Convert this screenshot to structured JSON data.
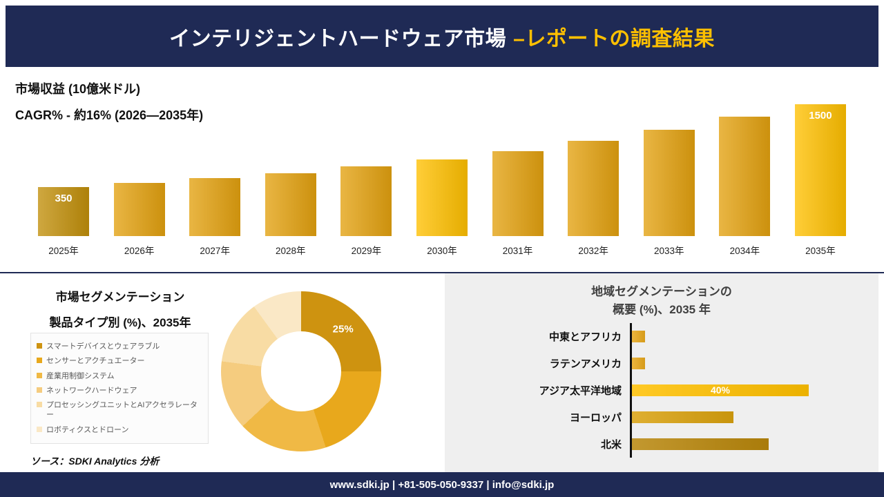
{
  "header": {
    "title_main": "インテリジェントハードウェア市場",
    "title_accent": "–レポートの調査結果"
  },
  "revenue": {
    "metric_label": "市場収益 (10億米ドル)",
    "cagr_label": "CAGR% - 約16% (2026―2035年)"
  },
  "segmentation": {
    "title_line1": "市場セグメンテーション",
    "title_line2": "製品タイプ別 (%)、2035年",
    "source": "ソース：SDKI Analytics 分析"
  },
  "region": {
    "title_line1": "地域セグメンテーションの",
    "title_line2": "概要 (%)、2035 年"
  },
  "footer": {
    "text": "www.sdki.jp | +81-505-050-9337 | info@sdki.jp"
  },
  "colors": {
    "navy": "#1f2a55",
    "accent_yellow": "#ffc000",
    "gold": "#e3a10f",
    "dark_gold": "#c18f0a"
  },
  "chart_data": [
    {
      "type": "bar",
      "title": "市場収益 (10億米ドル)",
      "subtitle": "CAGR% - 約16% (2026―2035年)",
      "categories": [
        "2025年",
        "2026年",
        "2027年",
        "2028年",
        "2029年",
        "2030年",
        "2031年",
        "2032年",
        "2033年",
        "2034年",
        "2035年"
      ],
      "values": [
        350,
        406,
        470,
        545,
        633,
        734,
        851,
        988,
        1146,
        1329,
        1500
      ],
      "labeled_values": [
        {
          "index": 0,
          "label": "350"
        },
        {
          "index": 10,
          "label": "1500"
        }
      ],
      "bar_colors": [
        "#c18f0a",
        "#e3a10f",
        "#e3a10f",
        "#e3a10f",
        "#e3a10f",
        "#ffc000",
        "#e3a10f",
        "#e3a10f",
        "#e3a10f",
        "#e3a10f",
        "#ffc000"
      ],
      "ylim": [
        0,
        1600
      ],
      "xlabel": "",
      "ylabel": "市場収益 (10億米ドル)"
    },
    {
      "type": "pie",
      "donut": true,
      "title": "市場セグメンテーション 製品タイプ別 (%)、2035年",
      "labels": [
        "スマートデバイスとウェアラブル",
        "センサーとアクチュエーター",
        "産業用制御システム",
        "ネットワークハードウェア",
        "プロセッシングユニットとAIアクセラレーター",
        "ロボティクスとドローン"
      ],
      "values": [
        25,
        20,
        18,
        14,
        13,
        10
      ],
      "colors": [
        "#ce9310",
        "#e8a81c",
        "#f0b945",
        "#f5cc7f",
        "#f8dca4",
        "#fae8c6"
      ],
      "labeled_slices": [
        {
          "index": 0,
          "label": "25%"
        }
      ],
      "legend_position": "left"
    },
    {
      "type": "bar",
      "orientation": "horizontal",
      "title": "地域セグメンテーションの概要 (%)、2035 年",
      "categories": [
        "中東とアフリカ",
        "ラテンアメリカ",
        "アジア太平洋地域",
        "ヨーロッパ",
        "北米"
      ],
      "values": [
        3,
        3,
        40,
        23,
        31
      ],
      "colors": [
        "#e8a81c",
        "#e8a81c",
        "#ffc000",
        "#d9a10e",
        "#b8860b"
      ],
      "labeled_values": [
        {
          "index": 2,
          "label": "40%"
        }
      ],
      "xlim": [
        0,
        45
      ]
    }
  ]
}
